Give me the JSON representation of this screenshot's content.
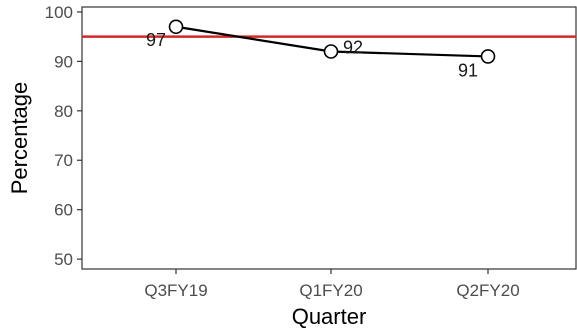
{
  "chart_data": {
    "type": "line",
    "categories": [
      "Q3FY19",
      "Q1FY20",
      "Q2FY20"
    ],
    "values": [
      97,
      92,
      91
    ],
    "data_labels": [
      "97",
      "92",
      "91"
    ],
    "xlabel": "Quarter",
    "ylabel": "Percentage",
    "ylim": [
      48,
      101
    ],
    "yticks": [
      50,
      60,
      70,
      80,
      90,
      100
    ],
    "reference_line": {
      "value": 95,
      "color": "#d62728"
    },
    "line_color": "#000000",
    "grid": false,
    "legend": "none"
  }
}
